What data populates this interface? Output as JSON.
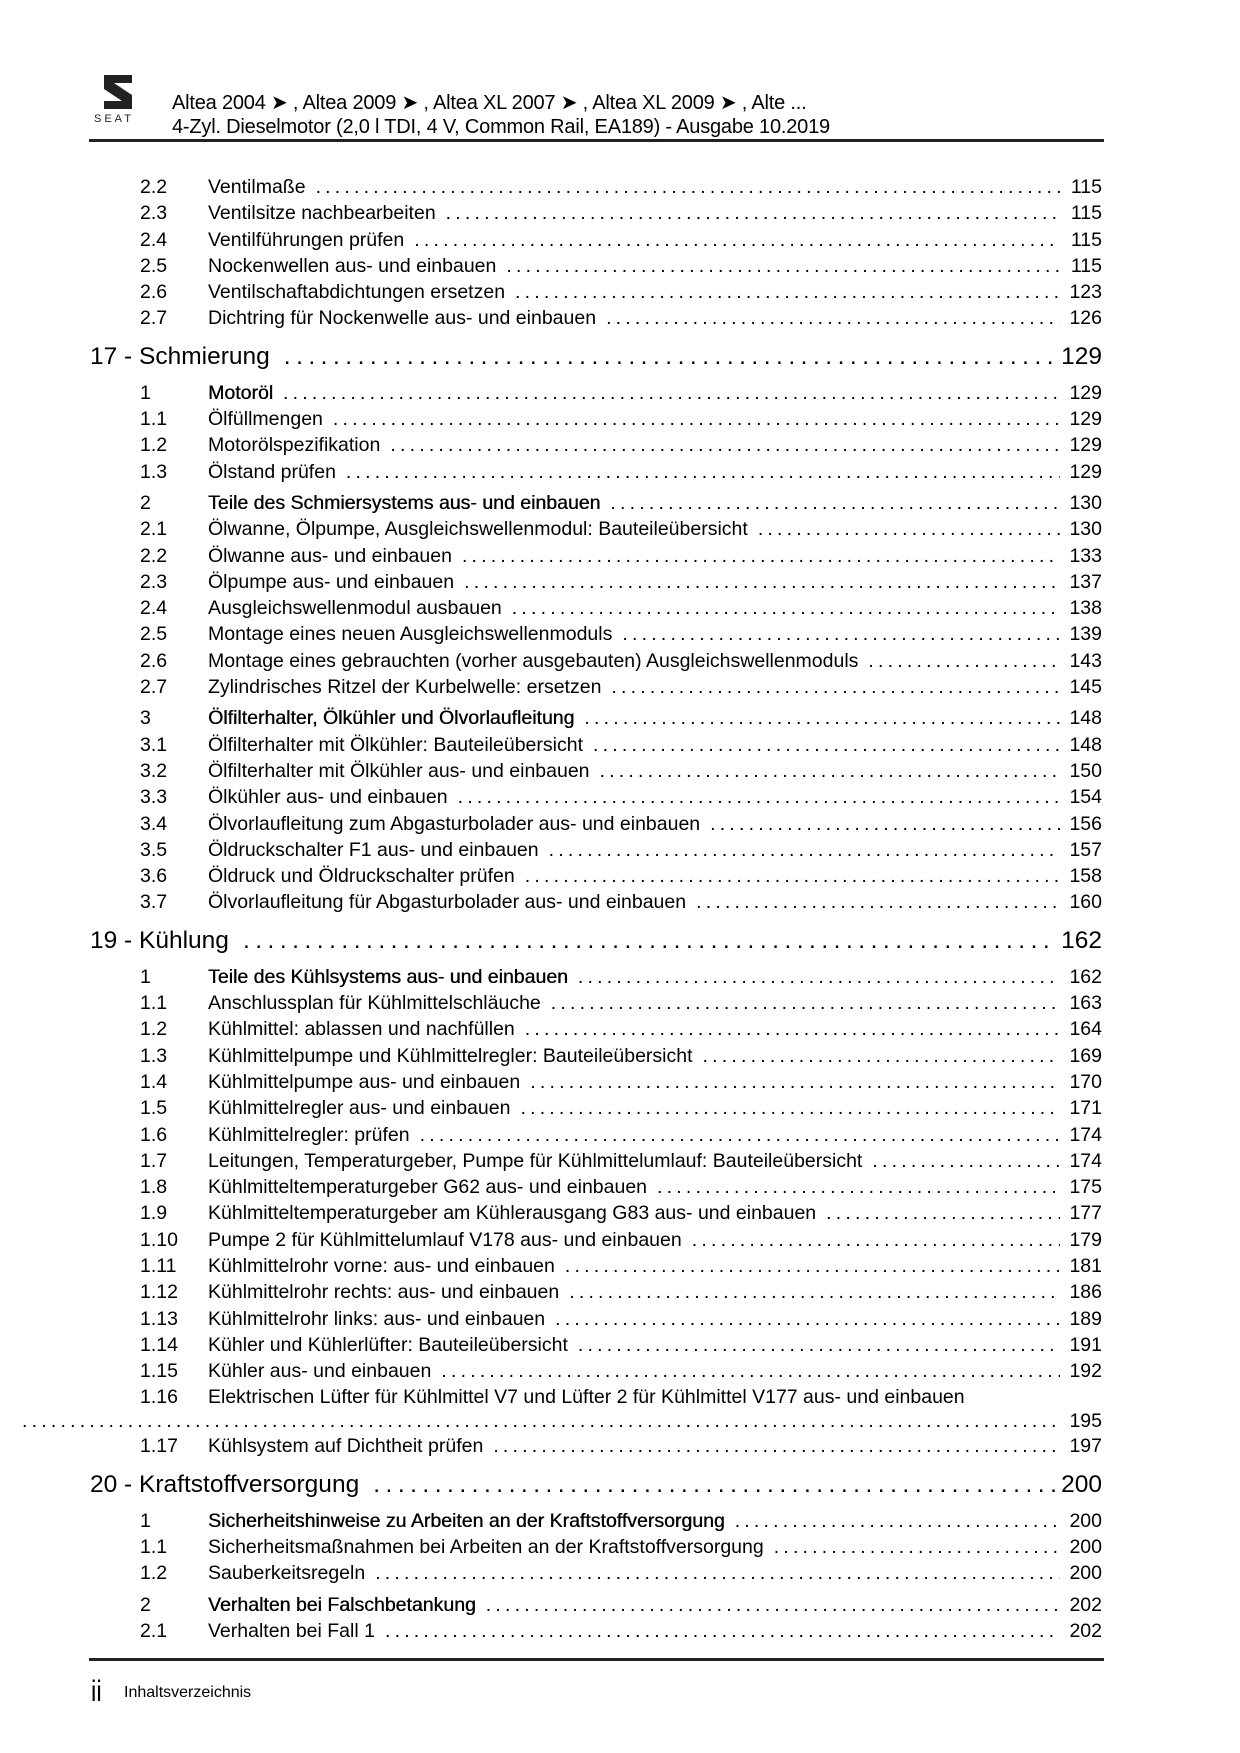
{
  "header": {
    "brand": "SEAT",
    "line1": "Altea 2004 ➤ , Altea 2009 ➤ , Altea XL 2007 ➤ , Altea XL 2009 ➤ , Alte ...",
    "line2": "4-Zyl. Dieselmotor (2,0 l TDI, 4 V, Common Rail, EA189) - Ausgabe 10.2019"
  },
  "toc": [
    {
      "type": "entry",
      "num": "2.2",
      "title": "Ventilmaße",
      "page": "115"
    },
    {
      "type": "entry",
      "num": "2.3",
      "title": "Ventilsitze nachbearbeiten",
      "page": "115"
    },
    {
      "type": "entry",
      "num": "2.4",
      "title": "Ventilführungen prüfen",
      "page": "115"
    },
    {
      "type": "entry",
      "num": "2.5",
      "title": "Nockenwellen aus- und einbauen",
      "page": "115"
    },
    {
      "type": "entry",
      "num": "2.6",
      "title": "Ventilschaftabdichtungen ersetzen",
      "page": "123"
    },
    {
      "type": "entry",
      "num": "2.7",
      "title": "Dichtring für Nockenwelle aus- und einbauen",
      "page": "126"
    },
    {
      "type": "chapter",
      "title": "17 - Schmierung",
      "page": "129"
    },
    {
      "type": "section",
      "num": "1",
      "title": "Motoröl",
      "page": "129"
    },
    {
      "type": "entry",
      "num": "1.1",
      "title": "Ölfüllmengen",
      "page": "129"
    },
    {
      "type": "entry",
      "num": "1.2",
      "title": "Motorölspezifikation",
      "page": "129"
    },
    {
      "type": "entry",
      "num": "1.3",
      "title": "Ölstand prüfen",
      "page": "129"
    },
    {
      "type": "section",
      "num": "2",
      "title": "Teile des Schmiersystems aus- und einbauen",
      "page": "130"
    },
    {
      "type": "entry",
      "num": "2.1",
      "title": "Ölwanne, Ölpumpe, Ausgleichswellenmodul: Bauteileübersicht",
      "page": "130"
    },
    {
      "type": "entry",
      "num": "2.2",
      "title": "Ölwanne aus- und einbauen",
      "page": "133"
    },
    {
      "type": "entry",
      "num": "2.3",
      "title": "Ölpumpe aus- und einbauen",
      "page": "137"
    },
    {
      "type": "entry",
      "num": "2.4",
      "title": "Ausgleichswellenmodul ausbauen",
      "page": "138"
    },
    {
      "type": "entry",
      "num": "2.5",
      "title": "Montage eines neuen Ausgleichswellenmoduls",
      "page": "139"
    },
    {
      "type": "entry",
      "num": "2.6",
      "title": "Montage eines gebrauchten (vorher ausgebauten) Ausgleichswellenmoduls",
      "page": "143"
    },
    {
      "type": "entry",
      "num": "2.7",
      "title": "Zylindrisches Ritzel der Kurbelwelle: ersetzen",
      "page": "145"
    },
    {
      "type": "section",
      "num": "3",
      "title": "Ölfilterhalter, Ölkühler und Ölvorlaufleitung",
      "page": "148"
    },
    {
      "type": "entry",
      "num": "3.1",
      "title": "Ölfilterhalter mit Ölkühler: Bauteileübersicht",
      "page": "148"
    },
    {
      "type": "entry",
      "num": "3.2",
      "title": "Ölfilterhalter mit Ölkühler aus- und einbauen",
      "page": "150"
    },
    {
      "type": "entry",
      "num": "3.3",
      "title": "Ölkühler aus- und einbauen",
      "page": "154"
    },
    {
      "type": "entry",
      "num": "3.4",
      "title": "Ölvorlaufleitung zum Abgasturbolader aus- und einbauen",
      "page": "156"
    },
    {
      "type": "entry",
      "num": "3.5",
      "title": "Öldruckschalter F1 aus- und einbauen",
      "page": "157"
    },
    {
      "type": "entry",
      "num": "3.6",
      "title": "Öldruck und Öldruckschalter prüfen",
      "page": "158"
    },
    {
      "type": "entry",
      "num": "3.7",
      "title": "Ölvorlaufleitung für Abgasturbolader aus- und einbauen",
      "page": "160"
    },
    {
      "type": "chapter",
      "title": "19 - Kühlung",
      "page": "162"
    },
    {
      "type": "section",
      "num": "1",
      "title": "Teile des Kühlsystems aus- und einbauen",
      "page": "162"
    },
    {
      "type": "entry",
      "num": "1.1",
      "title": "Anschlussplan für Kühlmittelschläuche",
      "page": "163"
    },
    {
      "type": "entry",
      "num": "1.2",
      "title": "Kühlmittel: ablassen und nachfüllen",
      "page": "164"
    },
    {
      "type": "entry",
      "num": "1.3",
      "title": "Kühlmittelpumpe und Kühlmittelregler: Bauteileübersicht",
      "page": "169"
    },
    {
      "type": "entry",
      "num": "1.4",
      "title": "Kühlmittelpumpe aus- und einbauen",
      "page": "170"
    },
    {
      "type": "entry",
      "num": "1.5",
      "title": "Kühlmittelregler aus- und einbauen",
      "page": "171"
    },
    {
      "type": "entry",
      "num": "1.6",
      "title": "Kühlmittelregler: prüfen",
      "page": "174"
    },
    {
      "type": "entry",
      "num": "1.7",
      "title": "Leitungen, Temperaturgeber, Pumpe für Kühlmittelumlauf: Bauteileübersicht",
      "page": "174"
    },
    {
      "type": "entry",
      "num": "1.8",
      "title": "Kühlmitteltemperaturgeber G62 aus- und einbauen",
      "page": "175"
    },
    {
      "type": "entry",
      "num": "1.9",
      "title": "Kühlmitteltemperaturgeber am Kühlerausgang G83 aus- und einbauen",
      "page": "177"
    },
    {
      "type": "entry",
      "num": "1.10",
      "title": "Pumpe 2 für Kühlmittelumlauf V178 aus- und einbauen",
      "page": "179"
    },
    {
      "type": "entry",
      "num": "1.11",
      "title": "Kühlmittelrohr vorne: aus- und einbauen",
      "page": "181"
    },
    {
      "type": "entry",
      "num": "1.12",
      "title": "Kühlmittelrohr rechts: aus- und einbauen",
      "page": "186"
    },
    {
      "type": "entry",
      "num": "1.13",
      "title": "Kühlmittelrohr links: aus- und einbauen",
      "page": "189"
    },
    {
      "type": "entry",
      "num": "1.14",
      "title": "Kühler und Kühlerlüfter: Bauteileübersicht",
      "page": "191"
    },
    {
      "type": "entry",
      "num": "1.15",
      "title": "Kühler aus- und einbauen",
      "page": "192"
    },
    {
      "type": "wrap",
      "num": "1.16",
      "title": "Elektrischen Lüfter für Kühlmittel V7 und Lüfter 2 für Kühlmittel V177 aus- und einbauen",
      "page": "195"
    },
    {
      "type": "entry",
      "num": "1.17",
      "title": "Kühlsystem auf Dichtheit prüfen",
      "page": "197"
    },
    {
      "type": "chapter",
      "title": "20 - Kraftstoffversorgung",
      "page": "200"
    },
    {
      "type": "section",
      "num": "1",
      "title": "Sicherheitshinweise zu Arbeiten an der Kraftstoffversorgung",
      "page": "200"
    },
    {
      "type": "entry",
      "num": "1.1",
      "title": "Sicherheitsmaßnahmen bei Arbeiten an der Kraftstoffversorgung",
      "page": "200"
    },
    {
      "type": "entry",
      "num": "1.2",
      "title": "Sauberkeitsregeln",
      "page": "200"
    },
    {
      "type": "section",
      "num": "2",
      "title": "Verhalten bei Falschbetankung",
      "page": "202"
    },
    {
      "type": "entry",
      "num": "2.1",
      "title": "Verhalten bei Fall 1",
      "page": "202"
    }
  ],
  "footer": {
    "page_number": "ii",
    "label": "Inhaltsverzeichnis"
  }
}
